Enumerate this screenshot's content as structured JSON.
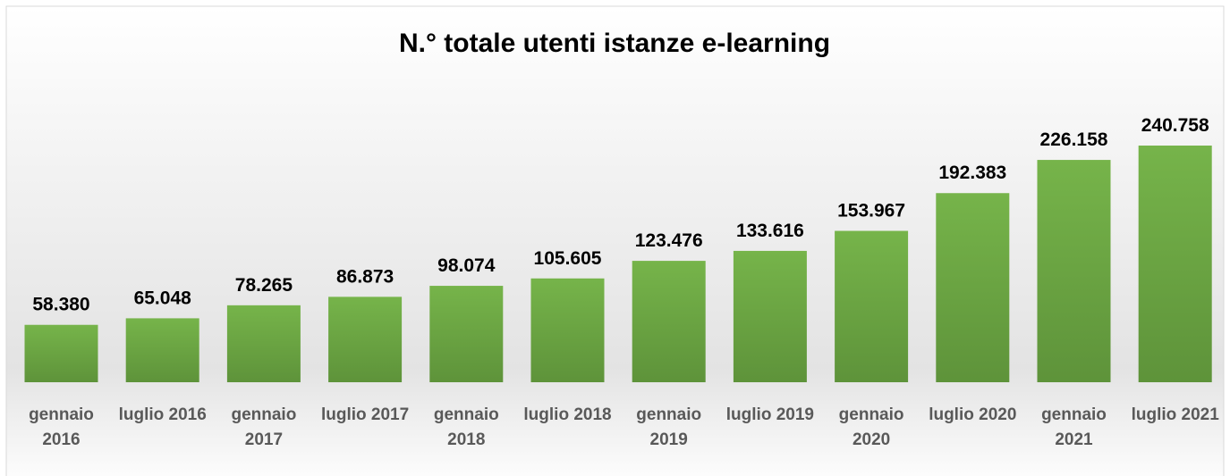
{
  "chart_data": {
    "type": "bar",
    "title": "N.° totale utenti istanze e-learning",
    "categories": [
      "gennaio 2016",
      "luglio 2016",
      "gennaio 2017",
      "luglio 2017",
      "gennaio 2018",
      "luglio 2018",
      "gennaio 2019",
      "luglio 2019",
      "gennaio 2020",
      "luglio 2020",
      "gennaio 2021",
      "luglio 2021"
    ],
    "values": [
      58380,
      65048,
      78265,
      86873,
      98074,
      105605,
      123476,
      133616,
      153967,
      192383,
      226158,
      240758
    ],
    "value_labels": [
      "58.380",
      "65.048",
      "78.265",
      "86.873",
      "98.074",
      "105.605",
      "123.476",
      "133.616",
      "153.967",
      "192.383",
      "226.158",
      "240.758"
    ],
    "color": "#70ad47"
  }
}
